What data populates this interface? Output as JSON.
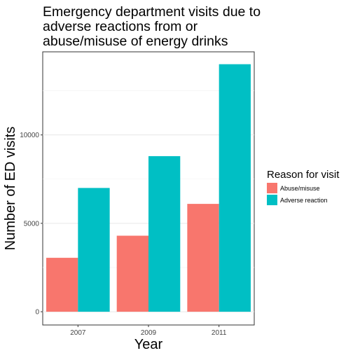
{
  "chart_data": {
    "type": "bar",
    "title_lines": [
      "Emergency department visits due to",
      "adverse reactions from or",
      "abuse/misuse of energy drinks"
    ],
    "xlabel": "Year",
    "ylabel": "Number of ED visits",
    "categories": [
      "2007",
      "2009",
      "2011"
    ],
    "series": [
      {
        "name": "Abuse/misuse",
        "color": "#F8766D",
        "values": [
          3050,
          4300,
          6100
        ]
      },
      {
        "name": "Adverse reaction",
        "color": "#00BFC4",
        "values": [
          7000,
          8800,
          14000
        ]
      }
    ],
    "ylim": [
      -750,
      14700
    ],
    "yticks": [
      0,
      5000,
      10000
    ],
    "ytick_labels": [
      "0",
      "5000",
      "10000"
    ],
    "grid": true,
    "legend": {
      "title": "Reason for visit",
      "position": "right"
    }
  }
}
